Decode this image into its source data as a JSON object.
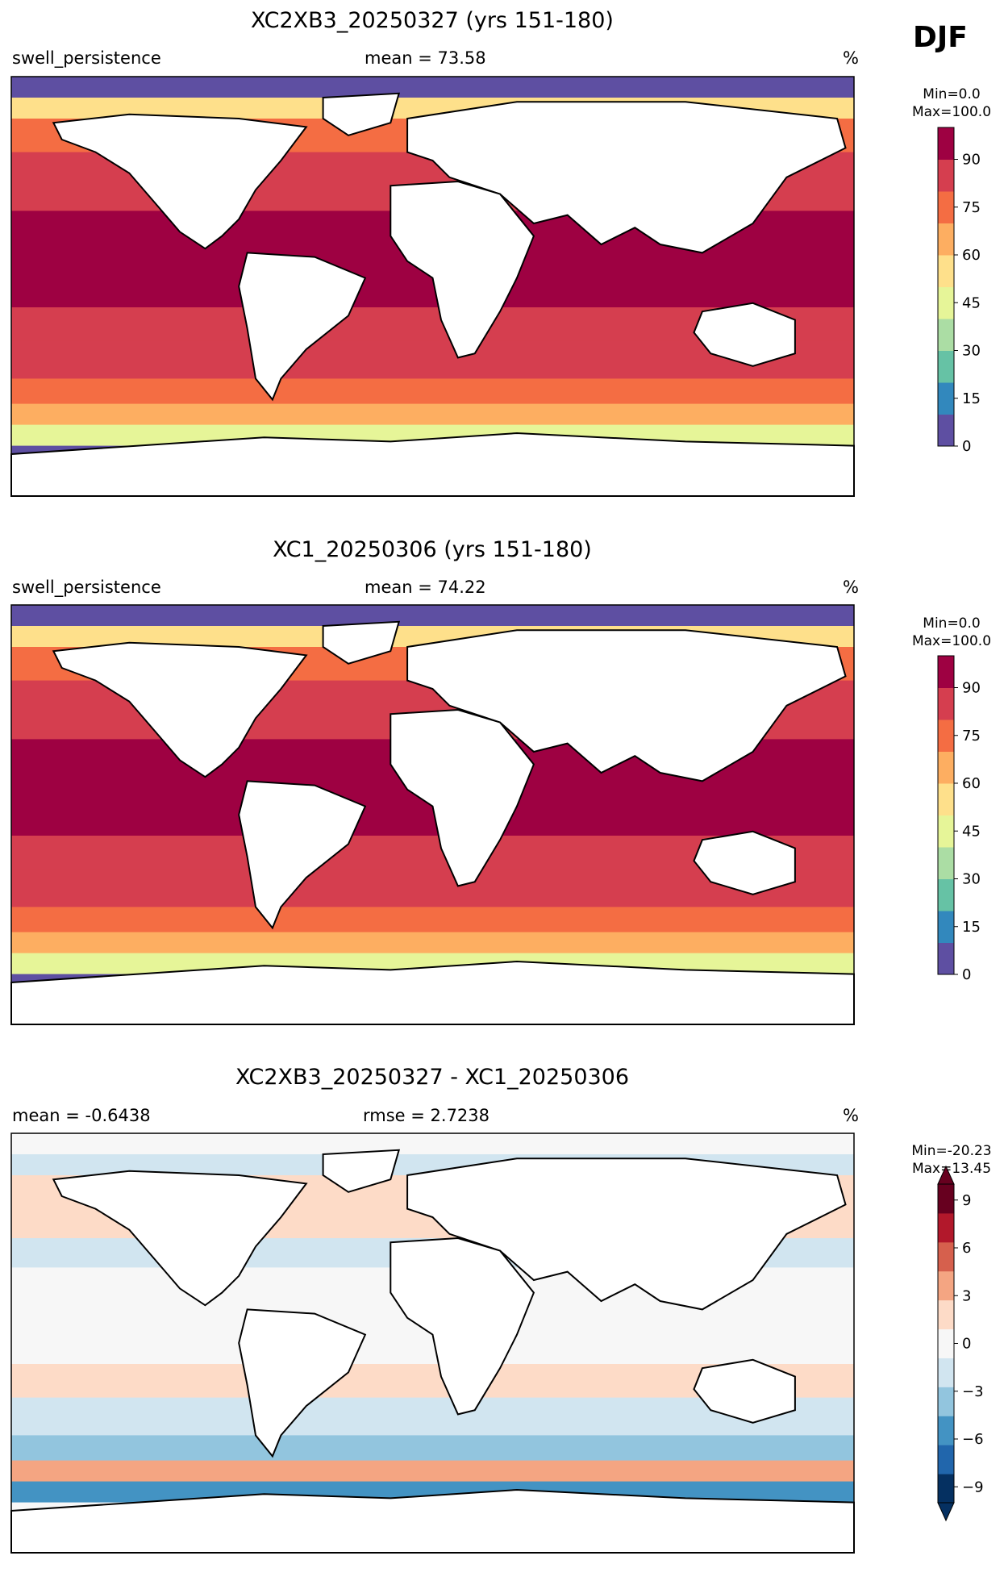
{
  "season": "DJF",
  "panels": [
    {
      "title": "XC2XB3_20250327 (yrs 151-180)",
      "left_label": "swell_persistence",
      "center_label": "mean = 73.58",
      "right_label": "%",
      "cbar_min": "Min=0.0",
      "cbar_max": "Max=100.0"
    },
    {
      "title": "XC1_20250306 (yrs 151-180)",
      "left_label": "swell_persistence",
      "center_label": "mean = 74.22",
      "right_label": "%",
      "cbar_min": "Min=0.0",
      "cbar_max": "Max=100.0"
    },
    {
      "title": "XC2XB3_20250327 - XC1_20250306",
      "left_label": "mean = -0.6438",
      "center_label": "rmse = 2.7238",
      "right_label": "%",
      "cbar_min": "Min=-20.23",
      "cbar_max": "Max=13.45"
    }
  ],
  "chart_data": [
    {
      "type": "heatmap",
      "variable": "swell_persistence",
      "units": "%",
      "mean": 73.58,
      "colormap": "Spectral_r",
      "colorbar_range": [
        0,
        100
      ],
      "colorbar_ticks": [
        "0",
        "15",
        "30",
        "45",
        "60",
        "75",
        "90"
      ],
      "colors": [
        "#5e4fa2",
        "#3288bd",
        "#66c2a5",
        "#abdda4",
        "#e6f598",
        "#fee08b",
        "#fdae61",
        "#f46d43",
        "#d53e4f",
        "#9e0142"
      ]
    },
    {
      "type": "heatmap",
      "variable": "swell_persistence",
      "units": "%",
      "mean": 74.22,
      "colormap": "Spectral_r",
      "colorbar_range": [
        0,
        100
      ],
      "colorbar_ticks": [
        "0",
        "15",
        "30",
        "45",
        "60",
        "75",
        "90"
      ],
      "colors": [
        "#5e4fa2",
        "#3288bd",
        "#66c2a5",
        "#abdda4",
        "#e6f598",
        "#fee08b",
        "#fdae61",
        "#f46d43",
        "#d53e4f",
        "#9e0142"
      ]
    },
    {
      "type": "heatmap",
      "units": "%",
      "mean": -0.6438,
      "rmse": 2.7238,
      "colormap": "RdBu_r",
      "colorbar_range": [
        -10,
        10
      ],
      "colorbar_ticks": [
        "−9",
        "−6",
        "−3",
        "0",
        "3",
        "6",
        "9"
      ],
      "colors": [
        "#053061",
        "#2166ac",
        "#4393c3",
        "#92c5de",
        "#d1e5f0",
        "#f7f7f7",
        "#fddbc7",
        "#f4a582",
        "#d6604d",
        "#b2182b",
        "#67001f"
      ]
    }
  ]
}
